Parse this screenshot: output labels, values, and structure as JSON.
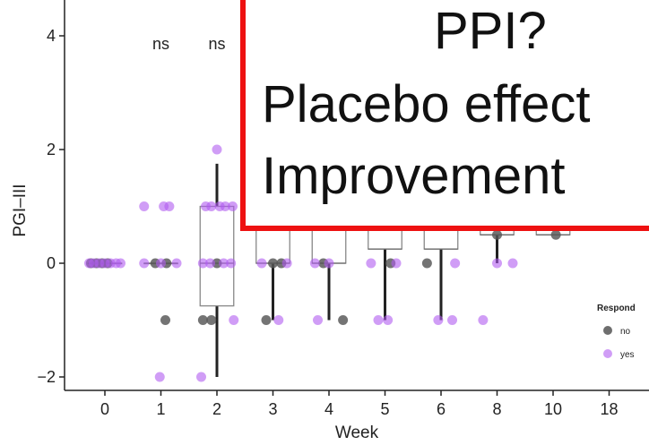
{
  "chart_data": {
    "type": "boxplot-with-points",
    "xlabel": "Week",
    "ylabel": "PGI–III",
    "categories": [
      "0",
      "1",
      "2",
      "3",
      "4",
      "5",
      "6",
      "8",
      "10",
      "18"
    ],
    "ylim": [
      -2.2,
      4.3
    ],
    "yticks": [
      -2,
      0,
      2,
      4
    ],
    "ytick_labels": [
      "−2",
      "0",
      "2",
      "4"
    ],
    "grid": false,
    "significance_labels": [
      {
        "category": "1",
        "text": "ns"
      },
      {
        "category": "2",
        "text": "ns"
      }
    ],
    "colors": {
      "no": "#555555",
      "yes": "#b05cf0"
    },
    "boxes": [
      {
        "category": "0",
        "q1": 0,
        "median": 0,
        "q3": 0,
        "whisker_low": 0,
        "whisker_high": 0
      },
      {
        "category": "1",
        "q1": 0,
        "median": 0,
        "q3": 0,
        "whisker_low": 0,
        "whisker_high": 0
      },
      {
        "category": "2",
        "q1": -0.75,
        "median": 0,
        "q3": 1,
        "whisker_low": -2,
        "whisker_high": 1.75
      },
      {
        "category": "3",
        "q1": 0,
        "median": 0,
        "q3": 1,
        "whisker_low": -1,
        "whisker_high": 1
      },
      {
        "category": "4",
        "q1": 0,
        "median": 0,
        "q3": 1,
        "whisker_low": -1,
        "whisker_high": 1
      },
      {
        "category": "5",
        "q1": 0.25,
        "median": 0.25,
        "q3": 1,
        "whisker_low": -1,
        "whisker_high": 1
      },
      {
        "category": "6",
        "q1": 0.25,
        "median": 0.25,
        "q3": 1,
        "whisker_low": -1,
        "whisker_high": 1
      },
      {
        "category": "8",
        "q1": 0.5,
        "median": 0.5,
        "q3": 1,
        "whisker_low": 0,
        "whisker_high": 1
      },
      {
        "category": "10",
        "q1": 0.5,
        "median": 0.5,
        "q3": 1,
        "whisker_low": 0.5,
        "whisker_high": 1
      }
    ],
    "series": [
      {
        "name": "no",
        "points": [
          {
            "category": "0",
            "dx": -0.25,
            "y": 0
          },
          {
            "category": "0",
            "dx": -0.15,
            "y": 0
          },
          {
            "category": "0",
            "dx": -0.05,
            "y": 0
          },
          {
            "category": "0",
            "dx": 0.05,
            "y": 0
          },
          {
            "category": "1",
            "dx": -0.1,
            "y": 0
          },
          {
            "category": "1",
            "dx": 0.1,
            "y": 0
          },
          {
            "category": "1",
            "dx": 0.08,
            "y": -1
          },
          {
            "category": "2",
            "dx": -0.25,
            "y": -1
          },
          {
            "category": "2",
            "dx": -0.1,
            "y": -1
          },
          {
            "category": "2",
            "dx": 0.0,
            "y": 0
          },
          {
            "category": "3",
            "dx": -0.12,
            "y": -1
          },
          {
            "category": "3",
            "dx": 0.0,
            "y": 0
          },
          {
            "category": "3",
            "dx": 0.15,
            "y": 0
          },
          {
            "category": "4",
            "dx": -0.1,
            "y": 0
          },
          {
            "category": "4",
            "dx": 0.25,
            "y": -1
          },
          {
            "category": "5",
            "dx": 0.1,
            "y": 0
          },
          {
            "category": "6",
            "dx": -0.25,
            "y": 0
          },
          {
            "category": "8",
            "dx": 0.0,
            "y": 0.5
          },
          {
            "category": "10",
            "dx": 0.05,
            "y": 0.5
          }
        ]
      },
      {
        "name": "yes",
        "points": [
          {
            "category": "0",
            "dx": -0.28,
            "y": 0
          },
          {
            "category": "0",
            "dx": -0.2,
            "y": 0
          },
          {
            "category": "0",
            "dx": -0.1,
            "y": 0
          },
          {
            "category": "0",
            "dx": 0.0,
            "y": 0
          },
          {
            "category": "0",
            "dx": 0.1,
            "y": 0
          },
          {
            "category": "0",
            "dx": 0.2,
            "y": 0
          },
          {
            "category": "0",
            "dx": 0.28,
            "y": 0
          },
          {
            "category": "1",
            "dx": -0.3,
            "y": 1
          },
          {
            "category": "1",
            "dx": 0.05,
            "y": 1
          },
          {
            "category": "1",
            "dx": 0.15,
            "y": 1
          },
          {
            "category": "1",
            "dx": -0.3,
            "y": 0
          },
          {
            "category": "1",
            "dx": 0.0,
            "y": 0
          },
          {
            "category": "1",
            "dx": 0.28,
            "y": 0
          },
          {
            "category": "1",
            "dx": -0.02,
            "y": -2
          },
          {
            "category": "2",
            "dx": 0.0,
            "y": 2
          },
          {
            "category": "2",
            "dx": -0.2,
            "y": 1
          },
          {
            "category": "2",
            "dx": -0.1,
            "y": 1
          },
          {
            "category": "2",
            "dx": 0.05,
            "y": 1
          },
          {
            "category": "2",
            "dx": 0.15,
            "y": 1
          },
          {
            "category": "2",
            "dx": 0.28,
            "y": 1
          },
          {
            "category": "2",
            "dx": -0.25,
            "y": 0
          },
          {
            "category": "2",
            "dx": -0.12,
            "y": 0
          },
          {
            "category": "2",
            "dx": 0.12,
            "y": 0
          },
          {
            "category": "2",
            "dx": 0.25,
            "y": 0
          },
          {
            "category": "2",
            "dx": 0.3,
            "y": -1
          },
          {
            "category": "2",
            "dx": -0.28,
            "y": -2
          },
          {
            "category": "3",
            "dx": -0.2,
            "y": 0
          },
          {
            "category": "3",
            "dx": 0.25,
            "y": 0
          },
          {
            "category": "3",
            "dx": 0.1,
            "y": -1
          },
          {
            "category": "4",
            "dx": -0.25,
            "y": 0
          },
          {
            "category": "4",
            "dx": -0.2,
            "y": -1
          },
          {
            "category": "4",
            "dx": 0.0,
            "y": 0
          },
          {
            "category": "5",
            "dx": -0.25,
            "y": 0
          },
          {
            "category": "5",
            "dx": 0.2,
            "y": 0
          },
          {
            "category": "5",
            "dx": -0.12,
            "y": -1
          },
          {
            "category": "5",
            "dx": 0.05,
            "y": -1
          },
          {
            "category": "6",
            "dx": -0.05,
            "y": -1
          },
          {
            "category": "6",
            "dx": 0.2,
            "y": -1
          },
          {
            "category": "6",
            "dx": 0.25,
            "y": 0
          },
          {
            "category": "8",
            "dx": -0.25,
            "y": -1
          },
          {
            "category": "8",
            "dx": 0.0,
            "y": 0
          },
          {
            "category": "8",
            "dx": 0.28,
            "y": 0
          }
        ]
      }
    ],
    "legend": {
      "title": "Respond",
      "position": "right",
      "entries": [
        {
          "label": "no",
          "color": "#555555"
        },
        {
          "label": "yes",
          "color": "#b05cf0"
        }
      ]
    }
  },
  "overlay": {
    "line1": "PPI?",
    "line2": "Placebo effect",
    "line3": "Improvement"
  }
}
